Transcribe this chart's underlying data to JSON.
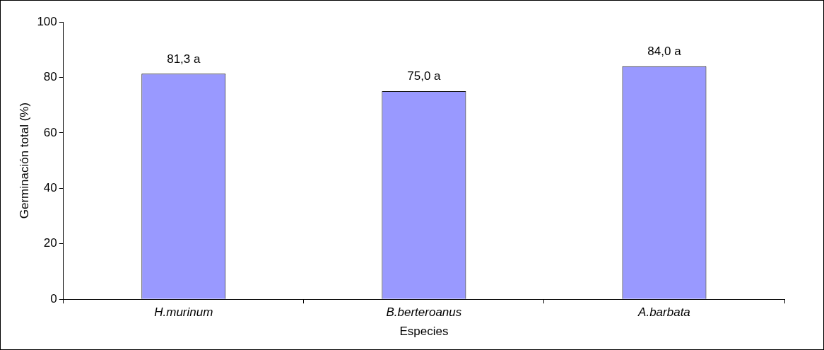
{
  "chart_data": {
    "type": "bar",
    "xlabel": "Especies",
    "ylabel": "Germinación total (%)",
    "categories": [
      "H.murinum",
      "B.berteroanus",
      "A.barbata"
    ],
    "values": [
      81.3,
      75.0,
      84.0
    ],
    "value_labels": [
      "81,3 a",
      "75,0 a",
      "84,0 a"
    ],
    "color": "#9999ff",
    "ylim": [
      0,
      100
    ],
    "yticks": [
      0,
      20,
      40,
      60,
      80,
      100
    ],
    "grid": false,
    "legend": false
  }
}
